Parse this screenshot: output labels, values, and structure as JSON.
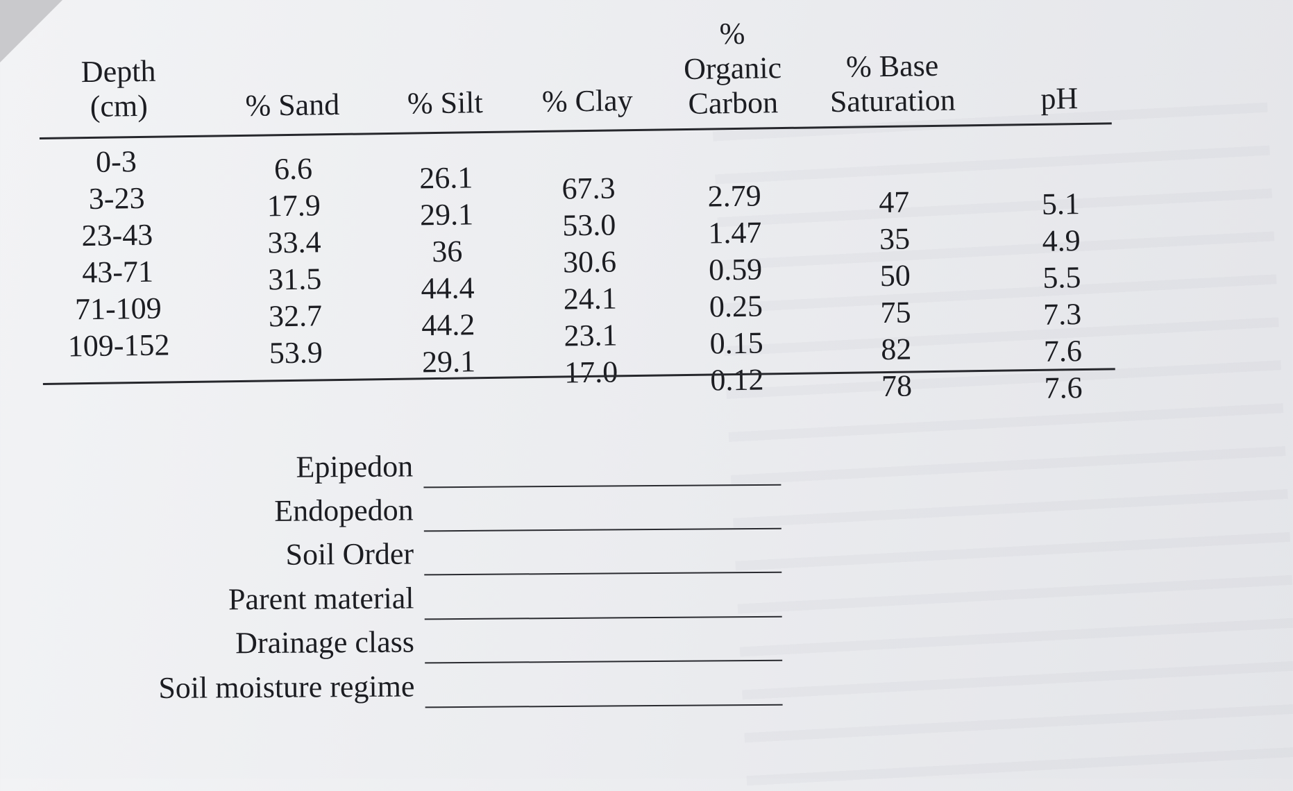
{
  "table": {
    "headers": {
      "depth": [
        "Depth",
        "(cm)"
      ],
      "sand": "% Sand",
      "silt": "% Silt",
      "clay": "% Clay",
      "organic_carbon": [
        "%",
        "Organic",
        "Carbon"
      ],
      "base_saturation": [
        "% Base",
        "Saturation"
      ],
      "ph": "pH"
    },
    "depth": [
      "0-3",
      "3-23",
      "23-43",
      "43-71",
      "71-109",
      "109-152"
    ],
    "sand": [
      "6.6",
      "17.9",
      "33.4",
      "31.5",
      "32.7",
      "53.9"
    ],
    "silt": [
      "26.1",
      "29.1",
      "36",
      "44.4",
      "44.2",
      "29.1"
    ],
    "clay": [
      "67.3",
      "53.0",
      "30.6",
      "24.1",
      "23.1",
      "17.0"
    ],
    "organic_carbon": [
      "2.79",
      "1.47",
      "0.59",
      "0.25",
      "0.15",
      "0.12"
    ],
    "base_saturation": [
      "47",
      "35",
      "50",
      "75",
      "82",
      "78"
    ],
    "ph": [
      "5.1",
      "4.9",
      "5.5",
      "7.3",
      "7.6",
      "7.6"
    ]
  },
  "form": {
    "fields": [
      "Epipedon",
      "Endopedon",
      "Soil Order",
      "Parent material",
      "Drainage class",
      "Soil moisture regime"
    ]
  }
}
